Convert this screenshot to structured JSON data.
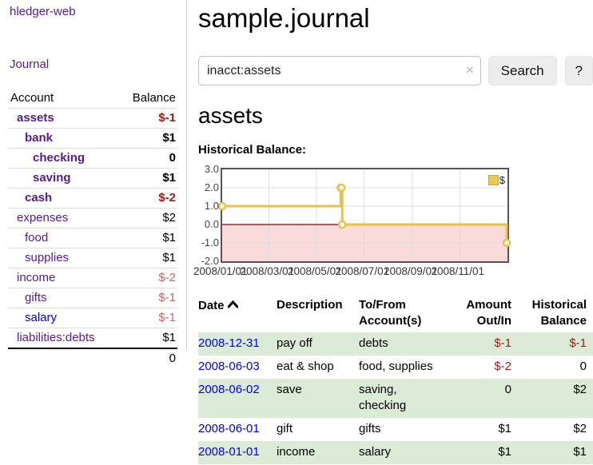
{
  "colors": {
    "link_purple": "#551a8b",
    "link_blue": "#0000ee",
    "negative_strong": "#9e1a1a",
    "negative_dim": "#c06868",
    "row_stripe_green": "#dcead8",
    "chart_line_gold": "#e8c14a",
    "chart_negative_fill": "#f9dbdb",
    "chart_zero_line": "#8b0000",
    "button_bg": "#ededed"
  },
  "sidebar": {
    "brand": "hledger-web",
    "journal_link": "Journal",
    "accounts": {
      "headers": {
        "account": "Account",
        "balance": "Balance"
      },
      "rows": [
        {
          "name": "assets",
          "level": 1,
          "bold": true,
          "link": "purple",
          "balance": "$-1",
          "tone": "neg"
        },
        {
          "name": "bank",
          "level": 2,
          "bold": true,
          "link": "purple",
          "balance": "$1",
          "tone": ""
        },
        {
          "name": "checking",
          "level": 3,
          "bold": true,
          "link": "purple",
          "balance": "0",
          "tone": ""
        },
        {
          "name": "saving",
          "level": 3,
          "bold": true,
          "link": "purple",
          "balance": "$1",
          "tone": ""
        },
        {
          "name": "cash",
          "level": 2,
          "bold": true,
          "link": "purple",
          "balance": "$-2",
          "tone": "neg"
        },
        {
          "name": "expenses",
          "level": 1,
          "bold": false,
          "link": "purple",
          "balance": "$2",
          "tone": ""
        },
        {
          "name": "food",
          "level": 2,
          "bold": false,
          "link": "purple",
          "balance": "$1",
          "tone": ""
        },
        {
          "name": "supplies",
          "level": 2,
          "bold": false,
          "link": "purple",
          "balance": "$1",
          "tone": ""
        },
        {
          "name": "income",
          "level": 1,
          "bold": false,
          "link": "purple",
          "balance": "$-2",
          "tone": "dimneg"
        },
        {
          "name": "gifts",
          "level": 2,
          "bold": false,
          "link": "purple",
          "balance": "$-1",
          "tone": "dimneg"
        },
        {
          "name": "salary",
          "level": 2,
          "bold": false,
          "link": "blue",
          "balance": "$-1",
          "tone": "dimneg"
        },
        {
          "name": "liabilities:debts",
          "level": 1,
          "bold": false,
          "link": "purple",
          "balance": "$1",
          "tone": ""
        }
      ],
      "total": "0"
    }
  },
  "main": {
    "title": "sample.journal",
    "search": {
      "value": "inacct:assets",
      "clear_icon": "×",
      "search_button": "Search",
      "help_button": "?"
    },
    "section_title": "assets",
    "chart_label": "Historical Balance:"
  },
  "chart_data": {
    "type": "line",
    "step": true,
    "title": "Historical Balance:",
    "legend": [
      {
        "label": "$",
        "color": "#ecc84f"
      }
    ],
    "legend_position": "top-right",
    "grid": true,
    "x_range": [
      "2008-01-01",
      "2009-01-01"
    ],
    "ylim": [
      -2.0,
      3.0
    ],
    "y_ticks": [
      {
        "label": "3.0",
        "value": 3
      },
      {
        "label": "2.0",
        "value": 2
      },
      {
        "label": "1.0",
        "value": 1
      },
      {
        "label": "0.0",
        "value": 0
      },
      {
        "label": "-1.0",
        "value": -1
      },
      {
        "label": "-2.0",
        "value": -2
      }
    ],
    "x_ticks": [
      {
        "label": "2008/01/01",
        "date": "2008-01-01"
      },
      {
        "label": "2008/03/01",
        "date": "2008-03-01"
      },
      {
        "label": "2008/05/01",
        "date": "2008-05-01"
      },
      {
        "label": "2008/07/01",
        "date": "2008-07-01"
      },
      {
        "label": "2008/09/01",
        "date": "2008-09-01"
      },
      {
        "label": "2008/11/01",
        "date": "2008-11-01"
      }
    ],
    "series": [
      {
        "name": "$",
        "x": [
          "2008-01-01",
          "2008-06-01",
          "2008-06-02",
          "2008-06-03",
          "2008-12-31"
        ],
        "y": [
          1,
          2,
          2,
          0,
          -1
        ]
      }
    ],
    "negative_region_shaded": true
  },
  "register": {
    "headers": {
      "date": "Date",
      "sort_icon": "chevron-up",
      "description": "Description",
      "accounts": "To/From\nAccount(s)",
      "amount": "Amount\nOut/In",
      "balance": "Historical\nBalance"
    },
    "rows": [
      {
        "date": "2008-12-31",
        "description": "pay off",
        "accounts": "debts",
        "amount": "$-1",
        "amount_tone": "neg",
        "balance": "$-1",
        "balance_tone": "neg",
        "stripe": true
      },
      {
        "date": "2008-06-03",
        "description": "eat & shop",
        "accounts": "food, supplies",
        "amount": "$-2",
        "amount_tone": "neg",
        "balance": "0",
        "balance_tone": "",
        "stripe": false
      },
      {
        "date": "2008-06-02",
        "description": "save",
        "accounts": "saving, checking",
        "amount": "0",
        "amount_tone": "",
        "balance": "$2",
        "balance_tone": "",
        "stripe": true
      },
      {
        "date": "2008-06-01",
        "description": "gift",
        "accounts": "gifts",
        "amount": "$1",
        "amount_tone": "",
        "balance": "$2",
        "balance_tone": "",
        "stripe": false
      },
      {
        "date": "2008-01-01",
        "description": "income",
        "accounts": "salary",
        "amount": "$1",
        "amount_tone": "",
        "balance": "$1",
        "balance_tone": "",
        "stripe": true
      }
    ]
  }
}
